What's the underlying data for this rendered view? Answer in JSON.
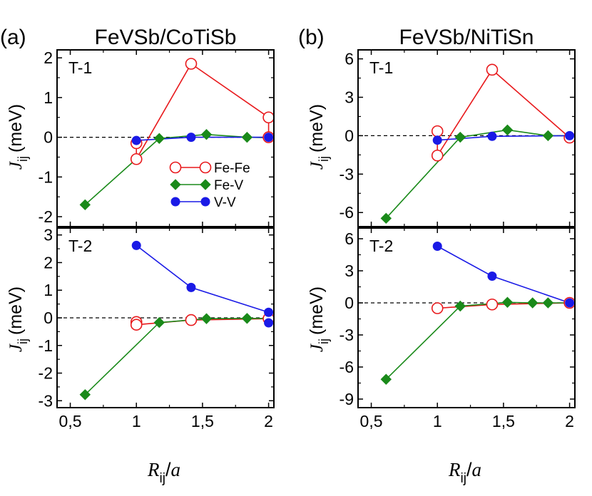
{
  "figure": {
    "panel_labels": [
      "(a)",
      "(b)"
    ],
    "titles": [
      "FeVSb/CoTiSb",
      "FeVSb/NiTiSn"
    ],
    "y_axis_label": {
      "symbol": "J",
      "subscript": "ij",
      "unit": "(meV)"
    },
    "x_axis_label": {
      "symbol": "R",
      "subscript": "ij",
      "suffix": "/",
      "denominator": "a"
    },
    "x_ticks": [
      0.5,
      1,
      1.5,
      2
    ],
    "x_tick_labels": [
      "0,5",
      "1",
      "1,5",
      "2"
    ],
    "legend": [
      {
        "name": "Fe-Fe",
        "color": "#e8191c",
        "marker": "open-circle"
      },
      {
        "name": "Fe-V",
        "color": "#1a8a1a",
        "marker": "diamond"
      },
      {
        "name": "V-V",
        "color": "#1a1ae6",
        "marker": "filled-circle"
      }
    ]
  },
  "chart_data": [
    {
      "type": "line",
      "panel": "a",
      "label": "T-1",
      "title": "FeVSb/CoTiSb",
      "xlabel": "Rij/a",
      "ylabel": "Jij (meV)",
      "xlim": [
        0.4,
        2.04
      ],
      "ylim": [
        -2.25,
        2.2
      ],
      "yticks": [
        -2,
        -1,
        0,
        1,
        2
      ],
      "yticklabels": [
        "-2",
        "-1",
        "0",
        "1",
        "2"
      ],
      "show_xticklabels": false,
      "legend": true,
      "series": [
        {
          "name": "Fe-Fe",
          "color": "#e8191c",
          "marker": "open-circle",
          "line": [
            [
              1.0,
              -0.55
            ],
            [
              1.414,
              1.85
            ],
            [
              2.0,
              0.5
            ]
          ],
          "points": [
            [
              1.0,
              -0.15
            ],
            [
              1.0,
              -0.55
            ],
            [
              1.414,
              1.85
            ],
            [
              2.0,
              0.5
            ],
            [
              2.0,
              0.0
            ]
          ],
          "links": [
            [
              [
                1.0,
                -0.15
              ],
              [
                1.0,
                -0.55
              ]
            ],
            [
              [
                2.0,
                0.5
              ],
              [
                2.0,
                0.0
              ]
            ]
          ]
        },
        {
          "name": "Fe-V",
          "color": "#1a8a1a",
          "marker": "diamond",
          "line": [
            [
              0.612,
              -1.7
            ],
            [
              1.173,
              -0.03
            ],
            [
              1.53,
              0.07
            ],
            [
              1.837,
              0.0
            ],
            [
              2.0,
              -0.01
            ]
          ],
          "points": [
            [
              0.612,
              -1.7
            ],
            [
              1.173,
              -0.03
            ],
            [
              1.53,
              0.07
            ],
            [
              1.837,
              0.0
            ]
          ]
        },
        {
          "name": "V-V",
          "color": "#1a1ae6",
          "marker": "filled-circle",
          "line": [
            [
              1.0,
              -0.08
            ],
            [
              1.414,
              0.0
            ],
            [
              2.0,
              0.0
            ]
          ],
          "points": [
            [
              1.0,
              -0.08
            ],
            [
              1.414,
              0.0
            ],
            [
              2.0,
              0.0
            ]
          ]
        }
      ]
    },
    {
      "type": "line",
      "panel": "a",
      "label": "T-2",
      "title": "",
      "xlabel": "Rij/a",
      "ylabel": "Jij (meV)",
      "xlim": [
        0.4,
        2.04
      ],
      "ylim": [
        -3.25,
        3.25
      ],
      "yticks": [
        -3,
        -2,
        -1,
        0,
        1,
        2,
        3
      ],
      "yticklabels": [
        "-3",
        "-2",
        "-1",
        "0",
        "1",
        "2",
        "3"
      ],
      "show_xticklabels": true,
      "legend": false,
      "series": [
        {
          "name": "Fe-Fe",
          "color": "#e8191c",
          "marker": "open-circle",
          "line": [
            [
              1.0,
              -0.25
            ],
            [
              1.414,
              -0.08
            ],
            [
              2.0,
              -0.03
            ]
          ],
          "points": [
            [
              1.0,
              -0.15
            ],
            [
              1.0,
              -0.25
            ],
            [
              1.414,
              -0.08
            ],
            [
              2.0,
              -0.03
            ]
          ],
          "links": [
            [
              [
                1.0,
                -0.15
              ],
              [
                1.0,
                -0.25
              ]
            ]
          ]
        },
        {
          "name": "Fe-V",
          "color": "#1a8a1a",
          "marker": "diamond",
          "line": [
            [
              0.612,
              -2.78
            ],
            [
              1.173,
              -0.17
            ],
            [
              1.53,
              -0.03
            ],
            [
              1.837,
              -0.02
            ],
            [
              2.0,
              -0.02
            ]
          ],
          "points": [
            [
              0.612,
              -2.78
            ],
            [
              1.173,
              -0.17
            ],
            [
              1.53,
              -0.03
            ],
            [
              1.837,
              -0.02
            ]
          ]
        },
        {
          "name": "V-V",
          "color": "#1a1ae6",
          "marker": "filled-circle",
          "line": [
            [
              1.0,
              2.62
            ],
            [
              1.414,
              1.1
            ],
            [
              2.0,
              0.2
            ]
          ],
          "points": [
            [
              1.0,
              2.62
            ],
            [
              1.414,
              1.1
            ],
            [
              2.0,
              0.2
            ],
            [
              2.0,
              -0.18
            ]
          ],
          "links": [
            [
              [
                2.0,
                0.2
              ],
              [
                2.0,
                -0.18
              ]
            ]
          ]
        }
      ]
    },
    {
      "type": "line",
      "panel": "b",
      "label": "T-1",
      "title": "FeVSb/NiTiSn",
      "xlabel": "Rij/a",
      "ylabel": "Jij (meV)",
      "xlim": [
        0.4,
        2.04
      ],
      "ylim": [
        -7.1,
        6.7
      ],
      "yticks": [
        -6,
        -3,
        0,
        3,
        6
      ],
      "yticklabels": [
        "-6",
        "-3",
        "0",
        "3",
        "6"
      ],
      "show_xticklabels": false,
      "legend": false,
      "series": [
        {
          "name": "Fe-Fe",
          "color": "#e8191c",
          "marker": "open-circle",
          "line": [
            [
              1.0,
              -1.55
            ],
            [
              1.414,
              5.15
            ],
            [
              2.0,
              -0.15
            ]
          ],
          "points": [
            [
              1.0,
              0.35
            ],
            [
              1.0,
              -1.55
            ],
            [
              1.414,
              5.15
            ],
            [
              2.0,
              -0.15
            ]
          ],
          "links": [
            [
              [
                1.0,
                0.35
              ],
              [
                1.0,
                -1.55
              ]
            ]
          ]
        },
        {
          "name": "Fe-V",
          "color": "#1a8a1a",
          "marker": "diamond",
          "line": [
            [
              0.612,
              -6.45
            ],
            [
              1.173,
              -0.12
            ],
            [
              1.53,
              0.45
            ],
            [
              1.837,
              0.0
            ],
            [
              2.0,
              0.0
            ]
          ],
          "points": [
            [
              0.612,
              -6.45
            ],
            [
              1.173,
              -0.12
            ],
            [
              1.53,
              0.45
            ],
            [
              1.837,
              0.0
            ]
          ]
        },
        {
          "name": "V-V",
          "color": "#1a1ae6",
          "marker": "filled-circle",
          "line": [
            [
              1.0,
              -0.35
            ],
            [
              1.414,
              -0.05
            ],
            [
              2.0,
              0.0
            ]
          ],
          "points": [
            [
              1.0,
              -0.35
            ],
            [
              1.414,
              -0.05
            ],
            [
              2.0,
              0.0
            ]
          ]
        }
      ]
    },
    {
      "type": "line",
      "panel": "b",
      "label": "T-2",
      "title": "",
      "xlabel": "Rij/a",
      "ylabel": "Jij (meV)",
      "xlim": [
        0.4,
        2.04
      ],
      "ylim": [
        -9.8,
        7.0
      ],
      "yticks": [
        -9,
        -6,
        -3,
        0,
        3,
        6
      ],
      "yticklabels": [
        "-9",
        "-6",
        "-3",
        "0",
        "3",
        "6"
      ],
      "show_xticklabels": true,
      "legend": false,
      "series": [
        {
          "name": "Fe-Fe",
          "color": "#e8191c",
          "marker": "open-circle",
          "line": [
            [
              1.0,
              -0.5
            ],
            [
              1.414,
              -0.15
            ],
            [
              2.0,
              0.0
            ]
          ],
          "points": [
            [
              1.0,
              -0.5
            ],
            [
              1.414,
              -0.15
            ],
            [
              2.0,
              0.0
            ]
          ]
        },
        {
          "name": "Fe-V",
          "color": "#1a8a1a",
          "marker": "diamond",
          "line": [
            [
              0.612,
              -7.15
            ],
            [
              1.173,
              -0.3
            ],
            [
              1.53,
              0.05
            ],
            [
              1.72,
              0.0
            ],
            [
              1.837,
              0.0
            ],
            [
              2.0,
              0.0
            ]
          ],
          "points": [
            [
              0.612,
              -7.15
            ],
            [
              1.173,
              -0.3
            ],
            [
              1.53,
              0.05
            ],
            [
              1.72,
              0.0
            ],
            [
              1.837,
              0.0
            ]
          ]
        },
        {
          "name": "V-V",
          "color": "#1a1ae6",
          "marker": "filled-circle",
          "line": [
            [
              1.0,
              5.3
            ],
            [
              1.414,
              2.5
            ],
            [
              2.0,
              0.0
            ]
          ],
          "points": [
            [
              1.0,
              5.3
            ],
            [
              1.414,
              2.5
            ],
            [
              2.0,
              0.0
            ]
          ]
        }
      ]
    }
  ]
}
